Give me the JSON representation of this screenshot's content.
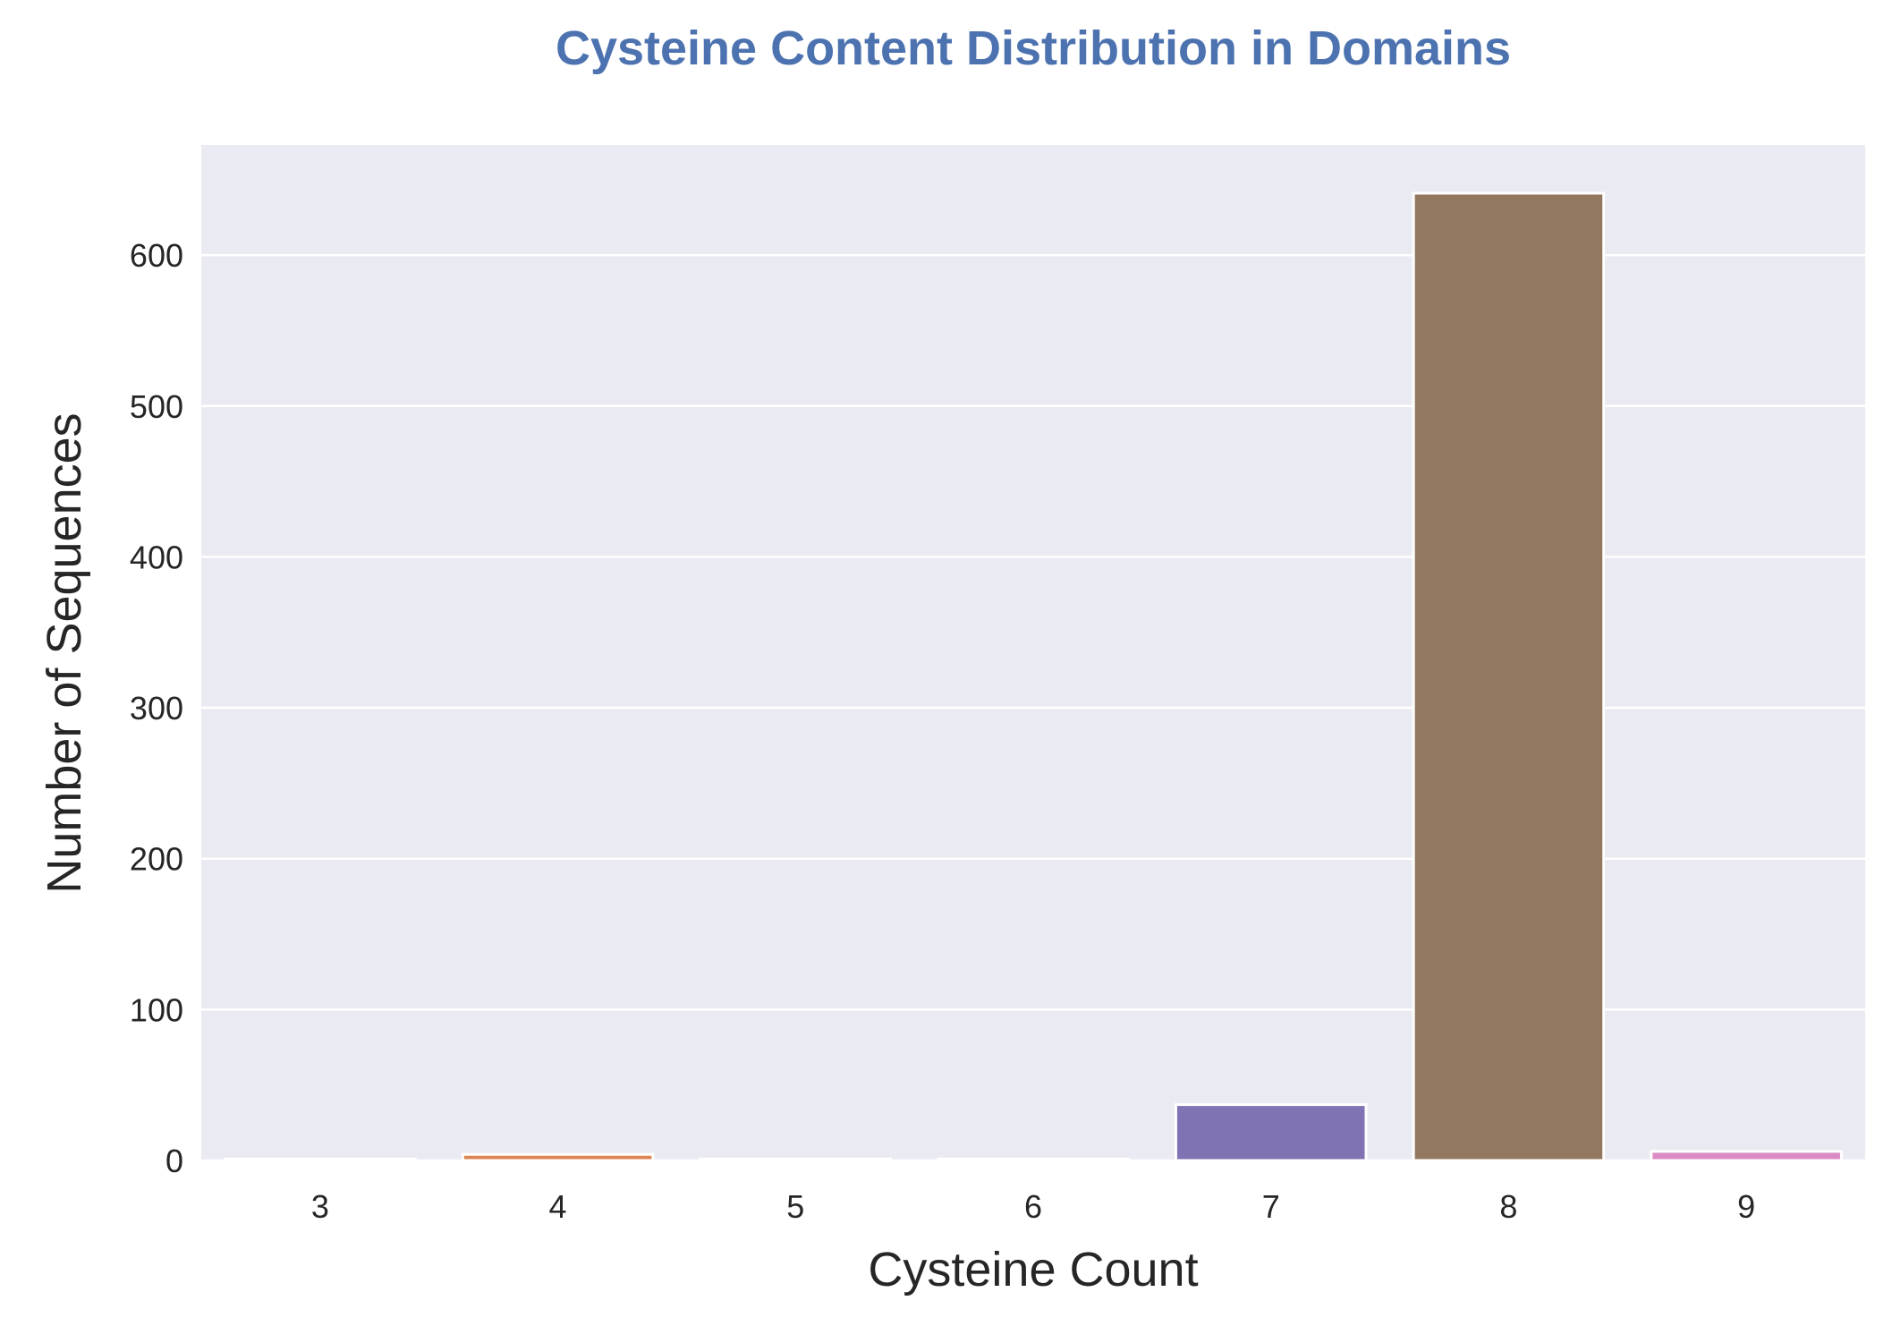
{
  "chart_data": {
    "type": "bar",
    "title": "Cysteine Content Distribution in Domains",
    "xlabel": "Cysteine Count",
    "ylabel": "Number of Sequences",
    "categories": [
      "3",
      "4",
      "5",
      "6",
      "7",
      "8",
      "9"
    ],
    "values": [
      1,
      4,
      1,
      1,
      37,
      641,
      6
    ],
    "ylim": [
      0,
      673
    ],
    "yticks": [
      0,
      100,
      200,
      300,
      400,
      500,
      600
    ],
    "grid": true,
    "legend": "none",
    "colors": {
      "title": "#4C72B0",
      "plot_background": "#EAEAF2",
      "grid": "#FFFFFF",
      "bars": [
        "#4C72B0",
        "#DD8452",
        "#55A868",
        "#C44E52",
        "#8172B3",
        "#937860",
        "#DA8BC3"
      ]
    }
  }
}
